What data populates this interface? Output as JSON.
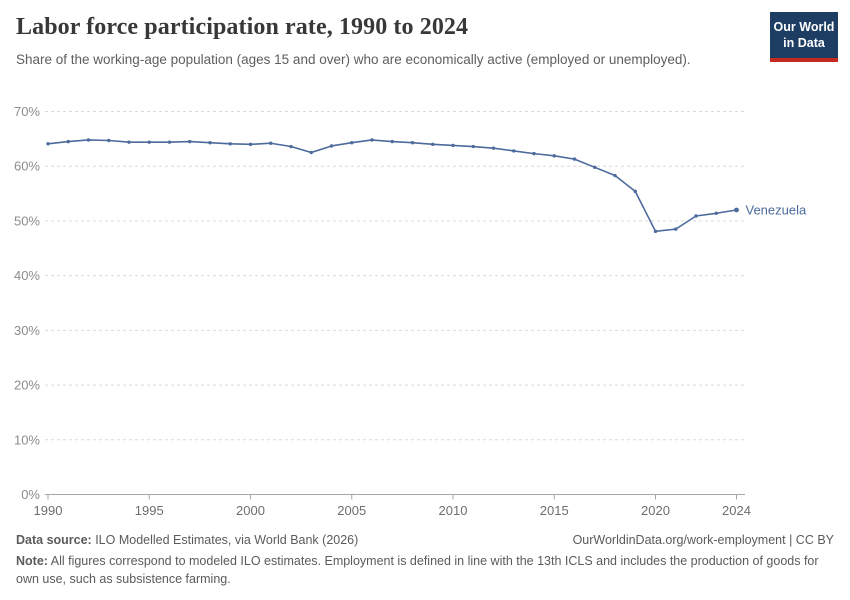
{
  "page": {
    "title": "Labor force participation rate, 1990 to 2024",
    "subtitle": "Share of the working-age population (ages 15 and over) who are economically active (employed or unemployed)."
  },
  "logo": {
    "line1": "Our World",
    "line2": "in Data",
    "bg_color": "#1d3d63",
    "accent_color": "#c5281f",
    "text_color": "#ffffff"
  },
  "footer": {
    "datasource_label": "Data source:",
    "datasource_text": " ILO Modelled Estimates, via World Bank (2026)",
    "attribution": "OurWorldinData.org/work-employment | CC BY",
    "note_label": "Note:",
    "note_text": " All figures correspond to modeled ILO estimates. Employment is defined in line with the 13th ICLS and includes the production of goods for own use, such as subsistence farming."
  },
  "chart_data": {
    "type": "line",
    "title": "Labor force participation rate, 1990 to 2024",
    "xlabel": "",
    "ylabel": "",
    "ylim": [
      0,
      70
    ],
    "y_ticks": [
      0,
      10,
      20,
      30,
      40,
      50,
      60,
      70
    ],
    "y_tick_suffix": "%",
    "x_ticks": [
      1990,
      1995,
      2000,
      2005,
      2010,
      2015,
      2020,
      2024
    ],
    "grid": true,
    "legend_position": "end-of-line",
    "x": [
      1990,
      1991,
      1992,
      1993,
      1994,
      1995,
      1996,
      1997,
      1998,
      1999,
      2000,
      2001,
      2002,
      2003,
      2004,
      2005,
      2006,
      2007,
      2008,
      2009,
      2010,
      2011,
      2012,
      2013,
      2014,
      2015,
      2016,
      2017,
      2018,
      2019,
      2020,
      2021,
      2022,
      2023,
      2024
    ],
    "series": [
      {
        "name": "Venezuela",
        "color": "#4C6A9C",
        "values": [
          64.1,
          64.5,
          64.8,
          64.7,
          64.4,
          64.4,
          64.4,
          64.5,
          64.3,
          64.1,
          64.0,
          64.2,
          63.6,
          62.5,
          63.7,
          64.3,
          64.8,
          64.5,
          64.3,
          64.0,
          63.8,
          63.6,
          63.3,
          62.8,
          62.3,
          61.9,
          61.3,
          59.8,
          58.3,
          55.4,
          48.1,
          48.5,
          50.9,
          51.4,
          52.0
        ]
      }
    ],
    "colors": {
      "grid": "#d9d9d9",
      "axis": "#a6a6a6",
      "y_label": "#8c8c8c",
      "x_label": "#6e6e6e"
    }
  }
}
